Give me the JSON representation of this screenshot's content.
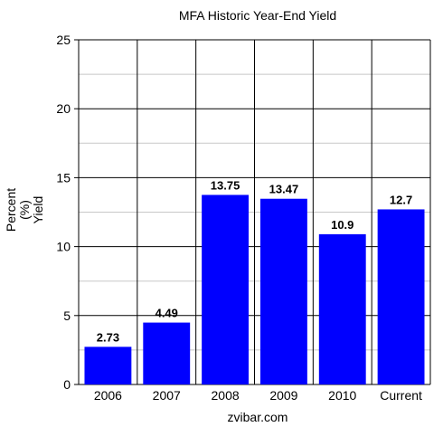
{
  "chart_data": {
    "type": "bar",
    "title": "MFA Historic Year-End Yield",
    "ylabel_lines": [
      "Percent",
      "(%)",
      "Yield"
    ],
    "categories": [
      "2006",
      "2007",
      "2008",
      "2009",
      "2010",
      "Current"
    ],
    "values": [
      2.73,
      4.49,
      13.75,
      13.47,
      10.9,
      12.7
    ],
    "data_labels": [
      "2.73",
      "4.49",
      "13.75",
      "13.47",
      "10.9",
      "12.7"
    ],
    "ylim": [
      0,
      25
    ],
    "yticks": [
      "0",
      "5",
      "10",
      "15",
      "20",
      "25"
    ],
    "ytick_values": [
      0,
      5,
      10,
      15,
      20,
      25
    ],
    "minor_grid_step": 2.5,
    "grid": true,
    "bar_color": "#0000FF"
  },
  "footer": "zvibar.com"
}
